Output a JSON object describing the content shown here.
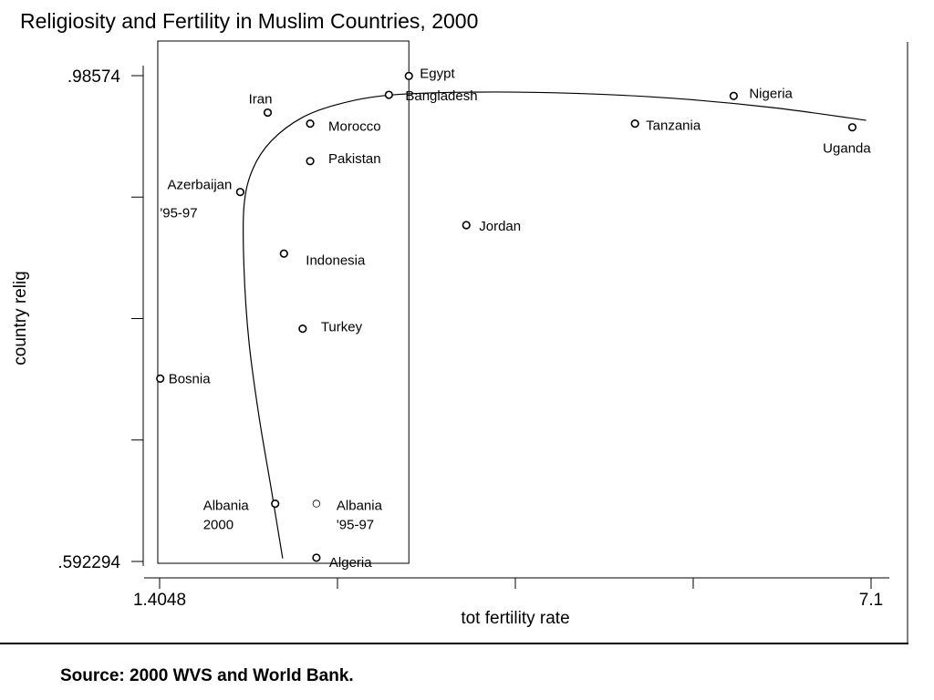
{
  "chart_data": {
    "type": "scatter",
    "title": "Religiosity and Fertility in Muslim Countries, 2000",
    "xlabel": "tot fertility rate",
    "ylabel": "country relig",
    "xlim": [
      1.4048,
      7.1
    ],
    "ylim": [
      0.592294,
      0.98574
    ],
    "x_tick_labels": [
      "1.4048",
      "7.1"
    ],
    "y_tick_labels": [
      ".98574",
      ".592294"
    ],
    "grid": false,
    "points": [
      {
        "label": "Egypt",
        "x": 3.4,
        "y": 0.9855
      },
      {
        "label": "Bangladesh",
        "x": 3.24,
        "y": 0.9702
      },
      {
        "label": "Nigeria",
        "x": 6.0,
        "y": 0.9693
      },
      {
        "label": "Iran",
        "x": 2.27,
        "y": 0.9558
      },
      {
        "label": "Morocco",
        "x": 2.61,
        "y": 0.9469
      },
      {
        "label": "Tanzania",
        "x": 5.21,
        "y": 0.9469
      },
      {
        "label": "Uganda",
        "x": 6.95,
        "y": 0.9439
      },
      {
        "label": "Pakistan",
        "x": 2.61,
        "y": 0.9165
      },
      {
        "label": "Azerbaijan '95-97",
        "x": 2.05,
        "y": 0.8915
      },
      {
        "label": "Jordan",
        "x": 3.86,
        "y": 0.8647
      },
      {
        "label": "Indonesia",
        "x": 2.4,
        "y": 0.8416
      },
      {
        "label": "Turkey",
        "x": 2.55,
        "y": 0.7808
      },
      {
        "label": "Bosnia",
        "x": 1.41,
        "y": 0.7404
      },
      {
        "label": "Albania 2000",
        "x": 2.33,
        "y": 0.6391
      },
      {
        "label": "Albania '95-97",
        "x": 2.66,
        "y": 0.6391
      },
      {
        "label": "Algeria",
        "x": 2.66,
        "y": 0.5953
      }
    ],
    "fit_curve": {
      "type": "smoothed fit",
      "x": [
        2.39,
        2.3,
        2.2,
        2.12,
        2.08,
        2.08,
        2.15,
        2.3,
        2.55,
        2.85,
        3.25,
        3.9,
        4.7,
        5.5,
        6.3,
        7.06
      ],
      "y": [
        0.5947,
        0.65,
        0.71,
        0.77,
        0.83,
        0.88,
        0.91,
        0.933,
        0.952,
        0.963,
        0.97,
        0.9724,
        0.9715,
        0.9675,
        0.96,
        0.9496
      ]
    },
    "box": {
      "x": [
        1.39,
        3.4
      ],
      "y": [
        0.592294,
        0.98574
      ]
    }
  },
  "source_note": "Source: 2000 WVS and World Bank."
}
